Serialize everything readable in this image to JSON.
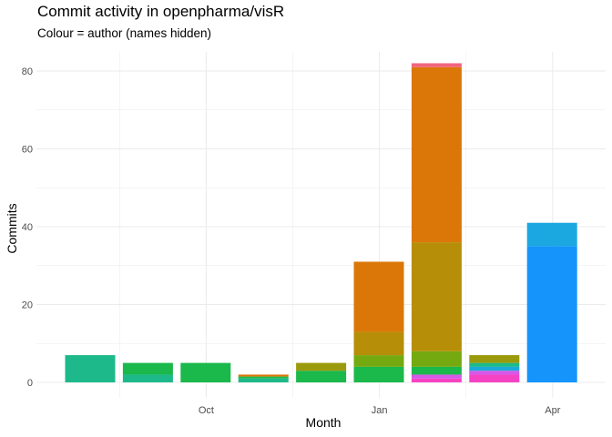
{
  "chart_data": {
    "type": "bar",
    "stacked": true,
    "title": "Commit activity in openpharma/visR",
    "subtitle": "Colour = author (names hidden)",
    "xlabel": "Month",
    "ylabel": "Commits",
    "x_tick_labels": [
      "Oct",
      "Jan",
      "Apr"
    ],
    "y_ticks": [
      0,
      20,
      40,
      60,
      80
    ],
    "ylim": [
      -2.5,
      86
    ],
    "grid": true,
    "legend": "none",
    "months": [
      {
        "index": 0,
        "segments": [
          {
            "value": 7,
            "color": "#1DB98A"
          }
        ]
      },
      {
        "index": 1,
        "segments": [
          {
            "value": 2,
            "color": "#1DB98A"
          },
          {
            "value": 3,
            "color": "#1BB84B"
          }
        ]
      },
      {
        "index": 2,
        "segments": [
          {
            "value": 5,
            "color": "#1BB84B"
          }
        ]
      },
      {
        "index": 3,
        "segments": [
          {
            "value": 1,
            "color": "#1DB98A"
          },
          {
            "value": 0.5,
            "color": "#1BB84B"
          },
          {
            "value": 0.5,
            "color": "#DB7709"
          }
        ]
      },
      {
        "index": 4,
        "segments": [
          {
            "value": 3,
            "color": "#1BB84B"
          },
          {
            "value": 2,
            "color": "#9A9A0C"
          }
        ]
      },
      {
        "index": 5,
        "segments": [
          {
            "value": 4,
            "color": "#1BB84B"
          },
          {
            "value": 3,
            "color": "#74AA10"
          },
          {
            "value": 6,
            "color": "#B78E07"
          },
          {
            "value": 18,
            "color": "#DB7709"
          }
        ]
      },
      {
        "index": 6,
        "segments": [
          {
            "value": 1,
            "color": "#F643C4"
          },
          {
            "value": 1,
            "color": "#D558E9"
          },
          {
            "value": 2,
            "color": "#1BB84B"
          },
          {
            "value": 4,
            "color": "#74AA10"
          },
          {
            "value": 28,
            "color": "#B78E07"
          },
          {
            "value": 45,
            "color": "#DB7709"
          },
          {
            "value": 1,
            "color": "#F2647F"
          }
        ]
      },
      {
        "index": 7,
        "segments": [
          {
            "value": 2,
            "color": "#F643C4"
          },
          {
            "value": 1,
            "color": "#D558E9"
          },
          {
            "value": 1,
            "color": "#1AA9D9"
          },
          {
            "value": 1,
            "color": "#1DB98A"
          },
          {
            "value": 2,
            "color": "#9A9A0C"
          }
        ]
      },
      {
        "index": 8,
        "segments": [
          {
            "value": 35,
            "color": "#1595FB"
          },
          {
            "value": 6,
            "color": "#1BA8E1"
          }
        ]
      }
    ]
  }
}
